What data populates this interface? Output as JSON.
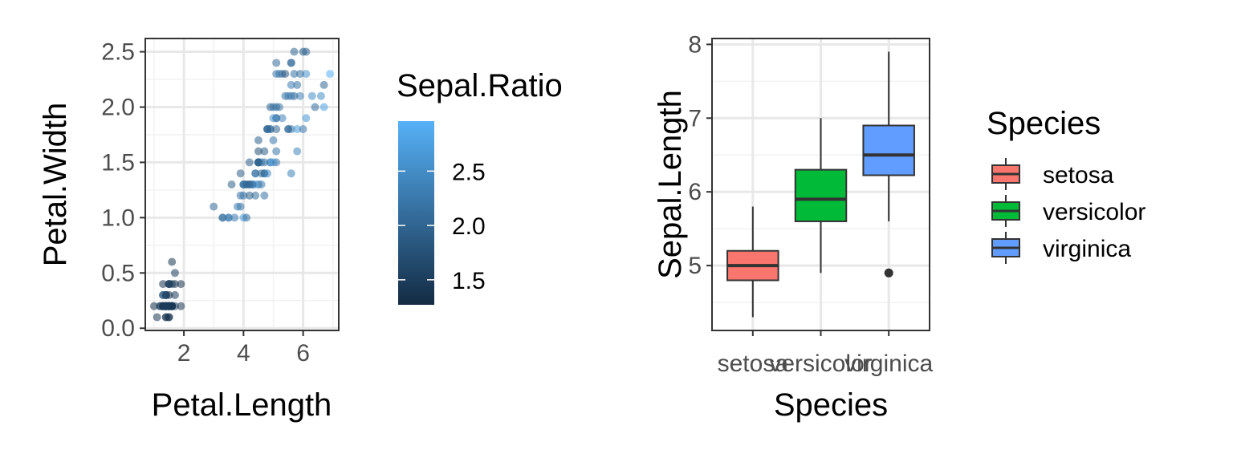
{
  "chart_data": [
    {
      "type": "scatter",
      "xlabel": "Petal.Length",
      "ylabel": "Petal.Width",
      "xlim": [
        0.705,
        7.195
      ],
      "ylim": [
        -0.02,
        2.62
      ],
      "x_ticks": [
        2,
        4,
        6
      ],
      "x_tick_labels": [
        "2",
        "4",
        "6"
      ],
      "y_ticks": [
        0,
        0.5,
        1,
        1.5,
        2,
        2.5
      ],
      "y_tick_labels": [
        "0.0",
        "0.5",
        "1.0",
        "1.5",
        "2.0",
        "2.5"
      ],
      "grid": true,
      "color_legend": {
        "title": "Sepal.Ratio",
        "range": [
          1.27,
          2.96
        ],
        "ticks": [
          1.5,
          2.0,
          2.5
        ],
        "tick_labels": [
          "1.5",
          "2.0",
          "2.5"
        ],
        "low_color": "#132b43",
        "high_color": "#56b1f7",
        "placement": "right"
      },
      "points": [
        {
          "x": 1.4,
          "y": 0.2,
          "c": 1.43
        },
        {
          "x": 1.4,
          "y": 0.2,
          "c": 1.63
        },
        {
          "x": 1.3,
          "y": 0.2,
          "c": 1.47
        },
        {
          "x": 1.5,
          "y": 0.2,
          "c": 1.48
        },
        {
          "x": 1.4,
          "y": 0.2,
          "c": 1.39
        },
        {
          "x": 1.7,
          "y": 0.4,
          "c": 1.38
        },
        {
          "x": 1.4,
          "y": 0.3,
          "c": 1.35
        },
        {
          "x": 1.5,
          "y": 0.2,
          "c": 1.47
        },
        {
          "x": 1.4,
          "y": 0.2,
          "c": 1.52
        },
        {
          "x": 1.5,
          "y": 0.1,
          "c": 1.58
        },
        {
          "x": 1.5,
          "y": 0.2,
          "c": 1.46
        },
        {
          "x": 1.6,
          "y": 0.2,
          "c": 1.41
        },
        {
          "x": 1.4,
          "y": 0.1,
          "c": 1.6
        },
        {
          "x": 1.1,
          "y": 0.1,
          "c": 1.43
        },
        {
          "x": 1.2,
          "y": 0.2,
          "c": 1.45
        },
        {
          "x": 1.5,
          "y": 0.4,
          "c": 1.3
        },
        {
          "x": 1.3,
          "y": 0.4,
          "c": 1.38
        },
        {
          "x": 1.4,
          "y": 0.3,
          "c": 1.46
        },
        {
          "x": 1.7,
          "y": 0.3,
          "c": 1.5
        },
        {
          "x": 1.5,
          "y": 0.3,
          "c": 1.34
        },
        {
          "x": 1.7,
          "y": 0.2,
          "c": 1.59
        },
        {
          "x": 1.5,
          "y": 0.4,
          "c": 1.38
        },
        {
          "x": 1.0,
          "y": 0.2,
          "c": 1.33
        },
        {
          "x": 1.7,
          "y": 0.5,
          "c": 1.55
        },
        {
          "x": 1.9,
          "y": 0.2,
          "c": 1.41
        },
        {
          "x": 1.6,
          "y": 0.2,
          "c": 1.67
        },
        {
          "x": 1.6,
          "y": 0.4,
          "c": 1.47
        },
        {
          "x": 1.5,
          "y": 0.2,
          "c": 1.49
        },
        {
          "x": 1.4,
          "y": 0.2,
          "c": 1.53
        },
        {
          "x": 1.6,
          "y": 0.2,
          "c": 1.47
        },
        {
          "x": 1.6,
          "y": 0.2,
          "c": 1.55
        },
        {
          "x": 1.5,
          "y": 0.4,
          "c": 1.59
        },
        {
          "x": 1.5,
          "y": 0.1,
          "c": 1.27
        },
        {
          "x": 1.4,
          "y": 0.2,
          "c": 1.31
        },
        {
          "x": 1.5,
          "y": 0.2,
          "c": 1.58
        },
        {
          "x": 1.2,
          "y": 0.2,
          "c": 1.56
        },
        {
          "x": 1.3,
          "y": 0.2,
          "c": 1.57
        },
        {
          "x": 1.4,
          "y": 0.1,
          "c": 1.36
        },
        {
          "x": 1.3,
          "y": 0.2,
          "c": 1.47
        },
        {
          "x": 1.5,
          "y": 0.2,
          "c": 1.5
        },
        {
          "x": 1.3,
          "y": 0.3,
          "c": 1.43
        },
        {
          "x": 1.3,
          "y": 0.3,
          "c": 1.96
        },
        {
          "x": 1.3,
          "y": 0.2,
          "c": 1.38
        },
        {
          "x": 1.6,
          "y": 0.6,
          "c": 1.43
        },
        {
          "x": 1.9,
          "y": 0.4,
          "c": 1.34
        },
        {
          "x": 1.4,
          "y": 0.3,
          "c": 1.6
        },
        {
          "x": 1.6,
          "y": 0.2,
          "c": 1.34
        },
        {
          "x": 1.4,
          "y": 0.2,
          "c": 1.44
        },
        {
          "x": 1.5,
          "y": 0.2,
          "c": 1.43
        },
        {
          "x": 1.4,
          "y": 0.2,
          "c": 1.52
        },
        {
          "x": 4.7,
          "y": 1.4,
          "c": 2.19
        },
        {
          "x": 4.5,
          "y": 1.5,
          "c": 2.0
        },
        {
          "x": 4.9,
          "y": 1.5,
          "c": 2.23
        },
        {
          "x": 4.0,
          "y": 1.3,
          "c": 2.39
        },
        {
          "x": 4.6,
          "y": 1.5,
          "c": 2.32
        },
        {
          "x": 4.5,
          "y": 1.3,
          "c": 2.0
        },
        {
          "x": 4.7,
          "y": 1.6,
          "c": 1.91
        },
        {
          "x": 3.3,
          "y": 1.0,
          "c": 2.04
        },
        {
          "x": 4.6,
          "y": 1.3,
          "c": 2.28
        },
        {
          "x": 3.9,
          "y": 1.4,
          "c": 1.93
        },
        {
          "x": 3.5,
          "y": 1.0,
          "c": 2.5
        },
        {
          "x": 4.2,
          "y": 1.5,
          "c": 1.97
        },
        {
          "x": 4.0,
          "y": 1.0,
          "c": 2.73
        },
        {
          "x": 4.7,
          "y": 1.4,
          "c": 2.1
        },
        {
          "x": 3.6,
          "y": 1.3,
          "c": 1.93
        },
        {
          "x": 4.4,
          "y": 1.4,
          "c": 2.16
        },
        {
          "x": 4.5,
          "y": 1.5,
          "c": 1.87
        },
        {
          "x": 4.1,
          "y": 1.0,
          "c": 2.15
        },
        {
          "x": 4.5,
          "y": 1.5,
          "c": 2.82
        },
        {
          "x": 3.9,
          "y": 1.1,
          "c": 2.24
        },
        {
          "x": 4.8,
          "y": 1.8,
          "c": 1.84
        },
        {
          "x": 4.0,
          "y": 1.3,
          "c": 2.18
        },
        {
          "x": 4.9,
          "y": 1.5,
          "c": 2.52
        },
        {
          "x": 4.7,
          "y": 1.2,
          "c": 2.18
        },
        {
          "x": 4.3,
          "y": 1.3,
          "c": 2.21
        },
        {
          "x": 4.4,
          "y": 1.4,
          "c": 2.2
        },
        {
          "x": 4.8,
          "y": 1.4,
          "c": 2.43
        },
        {
          "x": 5.0,
          "y": 1.7,
          "c": 2.23
        },
        {
          "x": 4.5,
          "y": 1.5,
          "c": 2.07
        },
        {
          "x": 3.5,
          "y": 1.0,
          "c": 2.19
        },
        {
          "x": 3.8,
          "y": 1.1,
          "c": 2.29
        },
        {
          "x": 3.7,
          "y": 1.0,
          "c": 2.29
        },
        {
          "x": 3.9,
          "y": 1.2,
          "c": 2.15
        },
        {
          "x": 5.1,
          "y": 1.6,
          "c": 2.22
        },
        {
          "x": 4.5,
          "y": 1.5,
          "c": 1.8
        },
        {
          "x": 4.5,
          "y": 1.6,
          "c": 1.76
        },
        {
          "x": 4.7,
          "y": 1.5,
          "c": 2.16
        },
        {
          "x": 4.4,
          "y": 1.3,
          "c": 2.74
        },
        {
          "x": 4.1,
          "y": 1.3,
          "c": 1.87
        },
        {
          "x": 4.0,
          "y": 1.3,
          "c": 2.2
        },
        {
          "x": 4.4,
          "y": 1.2,
          "c": 2.12
        },
        {
          "x": 4.6,
          "y": 1.4,
          "c": 2.03
        },
        {
          "x": 4.0,
          "y": 1.2,
          "c": 2.23
        },
        {
          "x": 3.3,
          "y": 1.0,
          "c": 2.17
        },
        {
          "x": 4.2,
          "y": 1.3,
          "c": 2.07
        },
        {
          "x": 4.2,
          "y": 1.2,
          "c": 1.9
        },
        {
          "x": 4.2,
          "y": 1.3,
          "c": 1.97
        },
        {
          "x": 4.3,
          "y": 1.3,
          "c": 2.14
        },
        {
          "x": 3.0,
          "y": 1.1,
          "c": 2.04
        },
        {
          "x": 4.1,
          "y": 1.3,
          "c": 2.04
        },
        {
          "x": 6.0,
          "y": 2.5,
          "c": 1.91
        },
        {
          "x": 5.1,
          "y": 1.9,
          "c": 2.15
        },
        {
          "x": 5.9,
          "y": 2.1,
          "c": 2.37
        },
        {
          "x": 5.6,
          "y": 1.8,
          "c": 2.17
        },
        {
          "x": 5.8,
          "y": 2.2,
          "c": 2.17
        },
        {
          "x": 6.6,
          "y": 2.1,
          "c": 2.53
        },
        {
          "x": 4.5,
          "y": 1.7,
          "c": 1.96
        },
        {
          "x": 6.3,
          "y": 2.1,
          "c": 2.52
        },
        {
          "x": 5.8,
          "y": 1.8,
          "c": 2.68
        },
        {
          "x": 6.1,
          "y": 2.5,
          "c": 2.0
        },
        {
          "x": 5.1,
          "y": 2.0,
          "c": 2.0
        },
        {
          "x": 5.3,
          "y": 1.9,
          "c": 2.37
        },
        {
          "x": 5.5,
          "y": 2.1,
          "c": 2.27
        },
        {
          "x": 5.0,
          "y": 2.0,
          "c": 2.28
        },
        {
          "x": 5.1,
          "y": 2.4,
          "c": 2.07
        },
        {
          "x": 5.3,
          "y": 2.3,
          "c": 2.0
        },
        {
          "x": 5.5,
          "y": 1.8,
          "c": 2.17
        },
        {
          "x": 6.7,
          "y": 2.2,
          "c": 2.03
        },
        {
          "x": 6.9,
          "y": 2.3,
          "c": 2.96
        },
        {
          "x": 5.0,
          "y": 1.5,
          "c": 2.73
        },
        {
          "x": 5.7,
          "y": 2.3,
          "c": 2.16
        },
        {
          "x": 4.9,
          "y": 2.0,
          "c": 2.0
        },
        {
          "x": 6.7,
          "y": 2.0,
          "c": 2.75
        },
        {
          "x": 4.9,
          "y": 1.8,
          "c": 2.33
        },
        {
          "x": 5.7,
          "y": 2.1,
          "c": 2.03
        },
        {
          "x": 6.0,
          "y": 1.8,
          "c": 2.25
        },
        {
          "x": 4.8,
          "y": 1.8,
          "c": 2.21
        },
        {
          "x": 4.9,
          "y": 1.8,
          "c": 2.03
        },
        {
          "x": 5.6,
          "y": 2.1,
          "c": 2.29
        },
        {
          "x": 5.8,
          "y": 1.6,
          "c": 2.4
        },
        {
          "x": 6.1,
          "y": 1.9,
          "c": 2.64
        },
        {
          "x": 6.4,
          "y": 2.0,
          "c": 2.08
        },
        {
          "x": 5.6,
          "y": 2.2,
          "c": 2.29
        },
        {
          "x": 5.1,
          "y": 1.5,
          "c": 2.25
        },
        {
          "x": 5.6,
          "y": 1.4,
          "c": 2.35
        },
        {
          "x": 6.1,
          "y": 2.3,
          "c": 2.57
        },
        {
          "x": 5.6,
          "y": 2.4,
          "c": 1.85
        },
        {
          "x": 5.5,
          "y": 1.8,
          "c": 2.06
        },
        {
          "x": 4.8,
          "y": 1.8,
          "c": 2.0
        },
        {
          "x": 5.4,
          "y": 2.1,
          "c": 2.22
        },
        {
          "x": 5.6,
          "y": 2.4,
          "c": 2.16
        },
        {
          "x": 5.1,
          "y": 2.3,
          "c": 2.23
        },
        {
          "x": 5.1,
          "y": 1.9,
          "c": 2.15
        },
        {
          "x": 5.9,
          "y": 2.3,
          "c": 2.125
        },
        {
          "x": 5.7,
          "y": 2.5,
          "c": 2.03
        },
        {
          "x": 5.2,
          "y": 2.3,
          "c": 2.23
        },
        {
          "x": 5.0,
          "y": 1.9,
          "c": 2.52
        },
        {
          "x": 5.2,
          "y": 2.0,
          "c": 2.17
        },
        {
          "x": 5.4,
          "y": 2.3,
          "c": 1.82
        },
        {
          "x": 5.1,
          "y": 1.8,
          "c": 1.97
        }
      ]
    },
    {
      "type": "box",
      "xlabel": "Species",
      "ylabel": "Sepal.Length",
      "categories": [
        "setosa",
        "versicolor",
        "virginica"
      ],
      "ylim": [
        4.12,
        8.08
      ],
      "y_ticks": [
        5,
        6,
        7,
        8
      ],
      "y_tick_labels": [
        "5",
        "6",
        "7",
        "8"
      ],
      "grid": true,
      "boxes": [
        {
          "name": "setosa",
          "lower_whisker": 4.3,
          "q1": 4.8,
          "median": 5.0,
          "q3": 5.2,
          "upper_whisker": 5.8,
          "outliers": [],
          "color": "#F8766D"
        },
        {
          "name": "versicolor",
          "lower_whisker": 4.9,
          "q1": 5.6,
          "median": 5.9,
          "q3": 6.3,
          "upper_whisker": 7.0,
          "outliers": [],
          "color": "#00BA38"
        },
        {
          "name": "virginica",
          "lower_whisker": 5.6,
          "q1": 6.225,
          "median": 6.5,
          "q3": 6.9,
          "upper_whisker": 7.9,
          "outliers": [
            4.9
          ],
          "color": "#619CFF"
        }
      ],
      "legend": {
        "title": "Species",
        "placement": "right",
        "entries": [
          {
            "label": "setosa",
            "color": "#F8766D"
          },
          {
            "label": "versicolor",
            "color": "#00BA38"
          },
          {
            "label": "virginica",
            "color": "#619CFF"
          }
        ]
      }
    }
  ]
}
